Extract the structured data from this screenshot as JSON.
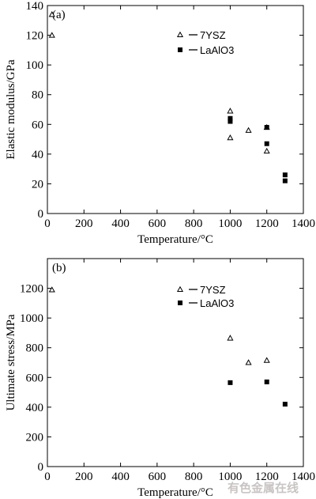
{
  "watermark": "有色金属在线",
  "chart_data": [
    {
      "type": "scatter",
      "panel_label": "(a)",
      "xlabel": "Temperature/°C",
      "ylabel": "Elastic modulus/GPa",
      "xlim": [
        0,
        1400
      ],
      "ylim": [
        0,
        140
      ],
      "xticks": [
        0,
        200,
        400,
        600,
        800,
        1000,
        1200,
        1400
      ],
      "yticks": [
        0,
        20,
        40,
        60,
        80,
        100,
        120,
        140
      ],
      "legend_position": "upper-right",
      "series": [
        {
          "name": "7YSZ",
          "marker": "triangle-open",
          "points": [
            [
              25,
              134
            ],
            [
              25,
              120
            ],
            [
              1000,
              69
            ],
            [
              1000,
              51
            ],
            [
              1100,
              56
            ],
            [
              1200,
              58
            ],
            [
              1200,
              42
            ]
          ]
        },
        {
          "name": "LaAlO3",
          "marker": "square-filled",
          "points": [
            [
              1000,
              64
            ],
            [
              1000,
              62
            ],
            [
              1200,
              58
            ],
            [
              1200,
              47
            ],
            [
              1300,
              26
            ],
            [
              1300,
              22
            ]
          ]
        }
      ]
    },
    {
      "type": "scatter",
      "panel_label": "(b)",
      "xlabel": "Temperature/°C",
      "ylabel": "Ultimate stress/MPa",
      "xlim": [
        0,
        1400
      ],
      "ylim": [
        0,
        1400
      ],
      "xticks": [
        0,
        200,
        400,
        600,
        800,
        1000,
        1200,
        1400
      ],
      "yticks": [
        0,
        200,
        400,
        600,
        800,
        1000,
        1200
      ],
      "legend_position": "upper-right",
      "series": [
        {
          "name": "7YSZ",
          "marker": "triangle-open",
          "points": [
            [
              25,
              1190
            ],
            [
              1000,
              865
            ],
            [
              1100,
              700
            ],
            [
              1200,
              715
            ]
          ]
        },
        {
          "name": "LaAlO3",
          "marker": "square-filled",
          "points": [
            [
              1000,
              565
            ],
            [
              1200,
              570
            ],
            [
              1300,
              420
            ]
          ]
        }
      ]
    }
  ]
}
